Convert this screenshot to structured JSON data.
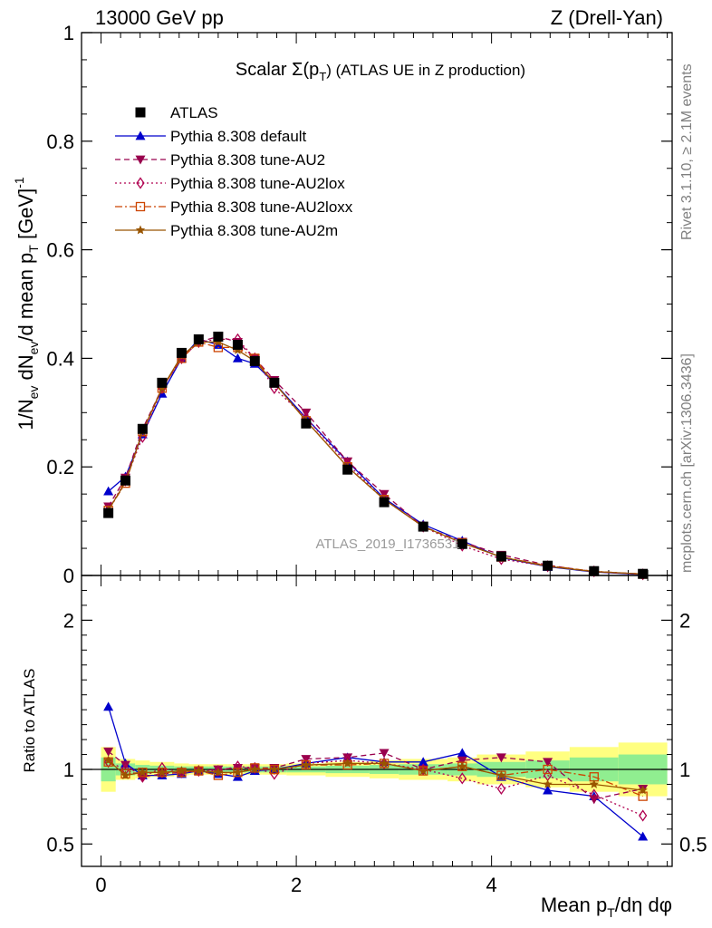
{
  "header": {
    "left": "13000 GeV pp",
    "right": "Z (Drell-Yan)"
  },
  "side_texts": {
    "rivet": "Rivet 3.1.10, ≥ 2.1M events",
    "mcplots": "mcplots.cern.ch [arXiv:1306.3436]"
  },
  "watermark": "ATLAS_2019_I1736531",
  "chart_data": [
    {
      "type": "line",
      "title_main": "Scalar Σ(p",
      "title_sub": "T",
      "title_tail": ") (ATLAS UE in Z production)",
      "ylabel": "1/N_ev dN_ev/d mean p_T [GeV]^-1",
      "xlim": [
        -0.2,
        5.85
      ],
      "ylim": [
        0,
        1
      ],
      "yticks": [
        0,
        0.2,
        0.4,
        0.6,
        0.8,
        1
      ],
      "ytick_labels": [
        "0",
        "0.2",
        "0.4",
        "0.6",
        "0.8",
        "1"
      ],
      "x": [
        0.075,
        0.25,
        0.425,
        0.625,
        0.825,
        1.0,
        1.2,
        1.4,
        1.575,
        1.775,
        2.1,
        2.525,
        2.9,
        3.3,
        3.7,
        4.1,
        4.575,
        5.05,
        5.55
      ],
      "series": [
        {
          "name": "ATLAS",
          "color": "#000000",
          "marker": "square-filled",
          "line": "none",
          "values": [
            0.115,
            0.175,
            0.27,
            0.355,
            0.41,
            0.435,
            0.44,
            0.425,
            0.395,
            0.355,
            0.28,
            0.195,
            0.135,
            0.09,
            0.058,
            0.035,
            0.018,
            0.008,
            0.003
          ]
        },
        {
          "name": "Pythia 8.308 default",
          "color": "#0000cc",
          "marker": "triangle-up-filled",
          "line": "solid",
          "values": [
            0.155,
            0.182,
            0.26,
            0.335,
            0.4,
            0.435,
            0.425,
            0.4,
            0.39,
            0.355,
            0.29,
            0.21,
            0.142,
            0.094,
            0.064,
            0.033,
            0.016,
            0.0065,
            0.0017
          ]
        },
        {
          "name": "Pythia 8.308 tune-AU2",
          "color": "#99004d",
          "marker": "triangle-down-filled",
          "line": "dashed",
          "values": [
            0.127,
            0.18,
            0.27,
            0.345,
            0.4,
            0.43,
            0.44,
            0.43,
            0.4,
            0.36,
            0.3,
            0.21,
            0.15,
            0.09,
            0.062,
            0.038,
            0.019,
            0.0067,
            0.0026
          ]
        },
        {
          "name": "Pythia 8.308 tune-AU2lox",
          "color": "#b00050",
          "marker": "diamond-open",
          "line": "dotted",
          "values": [
            0.12,
            0.175,
            0.255,
            0.345,
            0.4,
            0.43,
            0.435,
            0.435,
            0.4,
            0.345,
            0.29,
            0.205,
            0.14,
            0.09,
            0.055,
            0.03,
            0.017,
            0.0075,
            0.002
          ]
        },
        {
          "name": "Pythia 8.308 tune-AU2loxx",
          "color": "#cc4400",
          "marker": "square-open",
          "line": "dashdot",
          "values": [
            0.12,
            0.17,
            0.265,
            0.345,
            0.4,
            0.43,
            0.42,
            0.42,
            0.4,
            0.355,
            0.285,
            0.2,
            0.14,
            0.09,
            0.06,
            0.034,
            0.018,
            0.0076,
            0.0025
          ]
        },
        {
          "name": "Pythia 8.308 tune-AU2m",
          "color": "#995500",
          "marker": "star",
          "line": "solid",
          "values": [
            0.12,
            0.172,
            0.265,
            0.345,
            0.405,
            0.43,
            0.43,
            0.415,
            0.395,
            0.355,
            0.285,
            0.2,
            0.14,
            0.09,
            0.06,
            0.034,
            0.017,
            0.0072,
            0.0026
          ]
        }
      ]
    },
    {
      "type": "line",
      "ylabel": "Ratio to ATLAS",
      "xlabel_main": "Mean p",
      "xlabel_sub": "T",
      "xlabel_tail": "/dη dφ",
      "xlim": [
        -0.2,
        5.85
      ],
      "ylim": [
        0.35,
        2.3
      ],
      "xticks": [
        0,
        2,
        4
      ],
      "xtick_labels": [
        "0",
        "2",
        "4"
      ],
      "yticks": [
        0.5,
        1,
        2
      ],
      "ytick_labels": [
        "0.5",
        "1",
        "2"
      ],
      "bin_edges": [
        0.0,
        0.15,
        0.35,
        0.5,
        0.75,
        0.9,
        1.1,
        1.3,
        1.5,
        1.65,
        1.9,
        2.3,
        2.75,
        3.05,
        3.55,
        3.85,
        4.35,
        4.8,
        5.3,
        5.8
      ],
      "band_inner": [
        0.08,
        0.04,
        0.03,
        0.025,
        0.02,
        0.02,
        0.02,
        0.02,
        0.02,
        0.02,
        0.02,
        0.025,
        0.03,
        0.035,
        0.04,
        0.05,
        0.06,
        0.08,
        0.1
      ],
      "band_outer": [
        0.15,
        0.07,
        0.06,
        0.05,
        0.04,
        0.035,
        0.035,
        0.035,
        0.035,
        0.035,
        0.04,
        0.05,
        0.06,
        0.07,
        0.08,
        0.1,
        0.12,
        0.15,
        0.18
      ],
      "x": [
        0.075,
        0.25,
        0.425,
        0.625,
        0.825,
        1.0,
        1.2,
        1.4,
        1.575,
        1.775,
        2.1,
        2.525,
        2.9,
        3.3,
        3.7,
        4.1,
        4.575,
        5.05,
        5.55
      ],
      "series": [
        {
          "name": "Pythia 8.308 default",
          "color": "#0000cc",
          "marker": "triangle-up-filled",
          "line": "solid",
          "values": [
            1.42,
            1.04,
            0.96,
            0.96,
            0.97,
            0.99,
            0.97,
            0.95,
            0.99,
            1.0,
            1.04,
            1.08,
            1.05,
            1.05,
            1.11,
            0.95,
            0.86,
            0.82,
            0.55
          ]
        },
        {
          "name": "Pythia 8.308 tune-AU2",
          "color": "#99004d",
          "marker": "triangle-down-filled",
          "line": "dashed",
          "values": [
            1.12,
            1.03,
            0.95,
            0.97,
            0.98,
            0.99,
            1.0,
            1.01,
            1.01,
            1.01,
            1.07,
            1.08,
            1.11,
            1.0,
            1.06,
            1.08,
            1.05,
            0.8,
            0.87
          ]
        },
        {
          "name": "Pythia 8.308 tune-AU2lox",
          "color": "#b00050",
          "marker": "diamond-open",
          "line": "dotted",
          "values": [
            1.05,
            1.0,
            0.95,
            1.01,
            0.98,
            0.99,
            0.99,
            1.02,
            1.01,
            0.97,
            1.04,
            1.06,
            1.04,
            1.0,
            0.94,
            0.87,
            0.96,
            0.83,
            0.69
          ]
        },
        {
          "name": "Pythia 8.308 tune-AU2loxx",
          "color": "#cc4400",
          "marker": "square-open",
          "line": "dashdot",
          "values": [
            1.05,
            0.97,
            0.98,
            0.98,
            0.98,
            0.99,
            0.96,
            0.98,
            1.01,
            1.0,
            1.03,
            1.03,
            1.04,
            0.99,
            1.02,
            0.96,
            1.0,
            0.95,
            0.82
          ]
        },
        {
          "name": "Pythia 8.308 tune-AU2m",
          "color": "#995500",
          "marker": "star",
          "line": "solid",
          "values": [
            1.06,
            0.96,
            0.98,
            0.98,
            0.99,
            0.99,
            0.98,
            0.98,
            1.0,
            1.0,
            1.03,
            1.04,
            1.04,
            0.99,
            1.02,
            0.96,
            0.9,
            0.9,
            0.86
          ]
        }
      ]
    }
  ]
}
